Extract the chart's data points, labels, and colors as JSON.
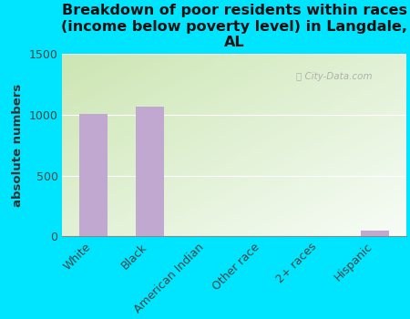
{
  "title": "Breakdown of poor residents within races\n(income below poverty level) in Langdale,\nAL",
  "categories": [
    "White",
    "Black",
    "American Indian",
    "Other race",
    "2+ races",
    "Hispanic"
  ],
  "values": [
    1005,
    1065,
    0,
    0,
    0,
    50
  ],
  "bar_color": "#c0a8d0",
  "ylabel": "absolute numbers",
  "ylim": [
    0,
    1500
  ],
  "yticks": [
    0,
    500,
    1000,
    1500
  ],
  "bg_outer": "#00e5ff",
  "bg_plot_top_left": "#d4e8c8",
  "bg_plot_top_right": "#e8f5f0",
  "bg_plot_bottom": "#f8f8f2",
  "title_fontsize": 11.5,
  "ylabel_fontsize": 9.5,
  "tick_fontsize": 9,
  "watermark": "ⓘ City-Data.com"
}
